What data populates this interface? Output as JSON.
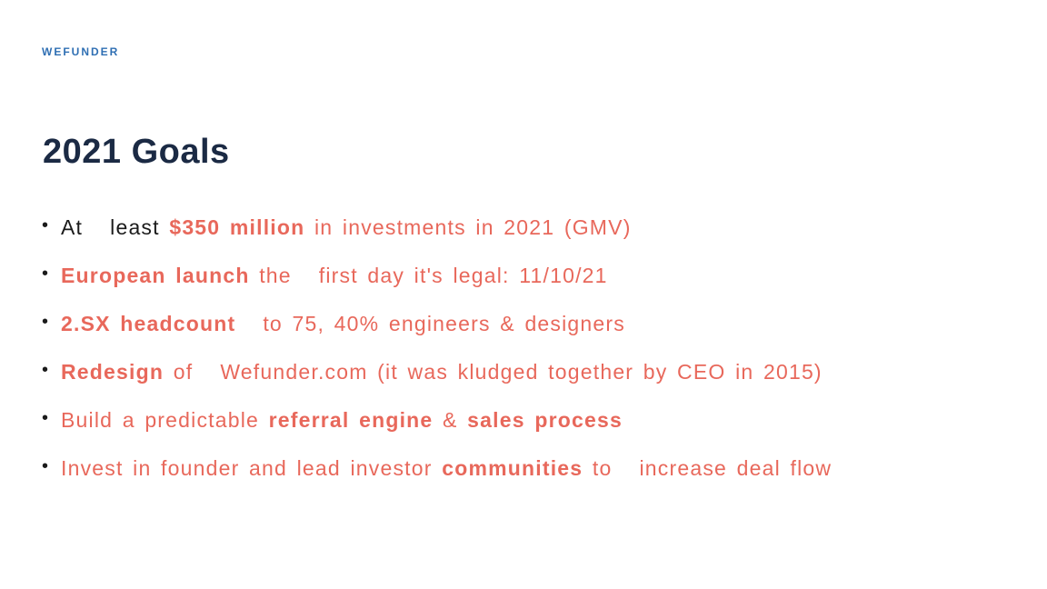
{
  "header": {
    "brand": "WEFUNDER"
  },
  "slide": {
    "title": "2021 Goals",
    "bullets": [
      {
        "s1": "At",
        "s2": "least",
        "s3": "$350 million",
        "s4": "in investments in 2021 (GMV)"
      },
      {
        "s1": "European launch",
        "s2": "the",
        "s3": "first day it's legal: 11/10/21"
      },
      {
        "s1": "2.SX headcount",
        "s2": "to 75, 40% engineers & designers"
      },
      {
        "s1": "Redesign",
        "s2": "of",
        "s3": "Wefunder.com (it was kludged together by CEO in 2015)"
      },
      {
        "s1": "Build a predictable",
        "s2": "referral engine",
        "s3": "&",
        "s4": "sales process"
      },
      {
        "s1": "Invest in founder and lead investor",
        "s2": "communities",
        "s3": "to",
        "s4": "increase deal flow"
      }
    ]
  }
}
